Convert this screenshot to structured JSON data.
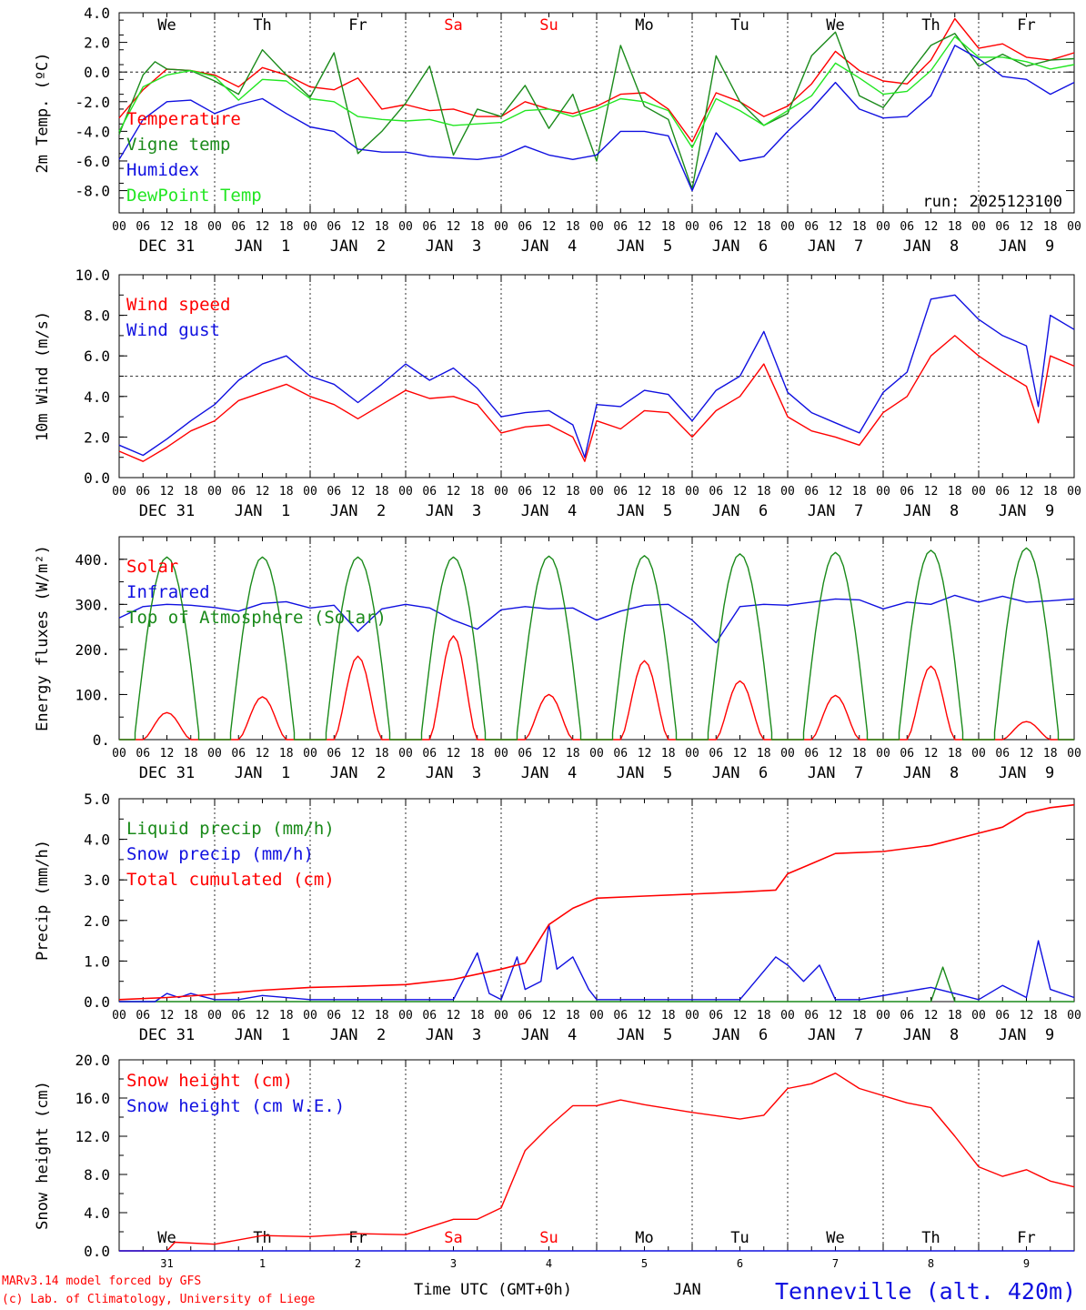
{
  "meta": {
    "credit_line1": "MARv3.14 model forced by GFS",
    "credit_line2": "(c) Lab. of Climatology, University of Liege",
    "time_label": "Time UTC (GMT+0h)",
    "month_label": "JAN",
    "location": "Tenneville (alt. 420m)",
    "run_label": "run: 2025123100",
    "colors": {
      "red": "#ff0000",
      "green": "#1a8a1a",
      "blue": "#1010e0",
      "lightgreen": "#22e622",
      "weekend": "#ff0000"
    }
  },
  "axis": {
    "hour_labels": [
      "00",
      "06",
      "12",
      "18"
    ],
    "final_hour": "00",
    "date_labels": [
      "DEC 31",
      "JAN  1",
      "JAN  2",
      "JAN  3",
      "JAN  4",
      "JAN  5",
      "JAN  6",
      "JAN  7",
      "JAN  8",
      "JAN  9"
    ],
    "weekdays": [
      "We",
      "Th",
      "Fr",
      "Sa",
      "Su",
      "Mo",
      "Tu",
      "We",
      "Th",
      "Fr"
    ],
    "weekend_index": [
      3,
      4
    ],
    "day_numbers": [
      "31",
      "1",
      "2",
      "3",
      "4",
      "5",
      "6",
      "7",
      "8",
      "9"
    ]
  },
  "chart_data": [
    {
      "id": "temp",
      "type": "line",
      "ylabel": "2m Temp. (ºC)",
      "ylim": [
        -9.5,
        4.0
      ],
      "yticks": [
        4.0,
        2.0,
        0.0,
        -2.0,
        -4.0,
        -6.0,
        -8.0
      ],
      "tick_labels": [
        "4.0",
        "2.0",
        "0.0",
        "-2.0",
        "-4.0",
        "-6.0",
        "-8.0"
      ],
      "ref_line": 0,
      "x_unit": "hours since 2025-12-31 00 UTC",
      "series": [
        {
          "name": "Temperature",
          "color": "#ff0000",
          "x": [
            0,
            6,
            12,
            18,
            24,
            30,
            36,
            42,
            48,
            54,
            60,
            66,
            72,
            78,
            84,
            90,
            96,
            102,
            108,
            114,
            120,
            126,
            132,
            138,
            144,
            150,
            156,
            162,
            168,
            174,
            180,
            186,
            192,
            198,
            204,
            210,
            216,
            222,
            228,
            234,
            240
          ],
          "y": [
            -3.1,
            -1.2,
            0.2,
            0.1,
            -0.2,
            -1.0,
            0.3,
            -0.2,
            -1.0,
            -1.2,
            -0.4,
            -2.5,
            -2.2,
            -2.6,
            -2.5,
            -3.0,
            -3.0,
            -2.0,
            -2.5,
            -2.8,
            -2.3,
            -1.5,
            -1.4,
            -2.5,
            -4.7,
            -1.4,
            -2.0,
            -3.0,
            -2.3,
            -0.8,
            1.4,
            0.1,
            -0.6,
            -0.8,
            0.8,
            3.6,
            1.6,
            1.9,
            1.0,
            0.8,
            1.3
          ]
        },
        {
          "name": "Vigne temp",
          "color": "#1a8a1a",
          "x": [
            0,
            6,
            9,
            12,
            18,
            24,
            30,
            36,
            42,
            48,
            54,
            60,
            66,
            72,
            78,
            84,
            90,
            96,
            102,
            108,
            114,
            120,
            126,
            132,
            138,
            144,
            150,
            156,
            162,
            168,
            174,
            180,
            186,
            192,
            198,
            204,
            210,
            216,
            222,
            228,
            234,
            240
          ],
          "y": [
            -4.2,
            -0.2,
            0.7,
            0.2,
            0.1,
            -0.6,
            -1.5,
            1.5,
            -0.2,
            -1.7,
            1.3,
            -5.5,
            -4.0,
            -2.1,
            0.4,
            -5.6,
            -2.5,
            -3.0,
            -0.9,
            -3.8,
            -1.5,
            -6.0,
            1.8,
            -2.3,
            -3.2,
            -7.9,
            1.1,
            -2.0,
            -3.6,
            -2.8,
            1.1,
            2.7,
            -1.6,
            -2.4,
            -0.3,
            1.8,
            2.6,
            0.4,
            1.2,
            0.4,
            0.8,
            0.9
          ]
        },
        {
          "name": "Humidex",
          "color": "#1010e0",
          "x": [
            0,
            6,
            12,
            18,
            24,
            30,
            36,
            42,
            48,
            54,
            60,
            66,
            72,
            78,
            84,
            90,
            96,
            102,
            108,
            114,
            120,
            126,
            132,
            138,
            144,
            150,
            156,
            162,
            168,
            174,
            180,
            186,
            192,
            198,
            204,
            210,
            216,
            222,
            228,
            234,
            240
          ],
          "y": [
            -5.9,
            -3.2,
            -2.0,
            -1.9,
            -2.8,
            -2.2,
            -1.8,
            -2.8,
            -3.7,
            -4.0,
            -5.2,
            -5.4,
            -5.4,
            -5.7,
            -5.8,
            -5.9,
            -5.7,
            -5.0,
            -5.6,
            -5.9,
            -5.6,
            -4.0,
            -4.0,
            -4.3,
            -8.0,
            -4.1,
            -6.0,
            -5.7,
            -4.0,
            -2.5,
            -0.7,
            -2.5,
            -3.1,
            -3.0,
            -1.6,
            1.8,
            0.9,
            -0.3,
            -0.5,
            -1.5,
            -0.7
          ]
        },
        {
          "name": "DewPoint Temp",
          "color": "#22e622",
          "x": [
            0,
            6,
            12,
            18,
            24,
            30,
            36,
            42,
            48,
            54,
            60,
            66,
            72,
            78,
            84,
            90,
            96,
            102,
            108,
            114,
            120,
            126,
            132,
            138,
            144,
            150,
            156,
            162,
            168,
            174,
            180,
            186,
            192,
            198,
            204,
            210,
            216,
            222,
            228,
            234,
            240
          ],
          "y": [
            -4.0,
            -1.0,
            -0.2,
            0.1,
            -0.3,
            -1.9,
            -0.5,
            -0.6,
            -1.8,
            -2.0,
            -3.0,
            -3.2,
            -3.3,
            -3.2,
            -3.6,
            -3.5,
            -3.4,
            -2.6,
            -2.5,
            -3.0,
            -2.5,
            -1.8,
            -2.0,
            -2.6,
            -5.1,
            -1.8,
            -2.6,
            -3.6,
            -2.6,
            -1.6,
            0.6,
            -0.4,
            -1.5,
            -1.3,
            0.1,
            2.4,
            1.0,
            1.0,
            0.7,
            0.2,
            0.5
          ]
        }
      ]
    },
    {
      "id": "wind",
      "type": "line",
      "ylabel": "10m Wind (m/s)",
      "ylim": [
        0,
        10
      ],
      "yticks": [
        10.0,
        8.0,
        6.0,
        4.0,
        2.0,
        0.0
      ],
      "tick_labels": [
        "10.0",
        "8.0",
        "6.0",
        "4.0",
        "2.0",
        "0.0"
      ],
      "ref_line": 5,
      "series": [
        {
          "name": "Wind speed",
          "color": "#ff0000",
          "x": [
            0,
            6,
            12,
            18,
            24,
            30,
            36,
            42,
            48,
            54,
            60,
            66,
            72,
            78,
            84,
            90,
            96,
            102,
            108,
            114,
            117,
            120,
            126,
            132,
            138,
            144,
            150,
            156,
            162,
            168,
            174,
            180,
            186,
            192,
            198,
            204,
            210,
            216,
            222,
            228,
            231,
            234,
            240
          ],
          "y": [
            1.3,
            0.8,
            1.5,
            2.3,
            2.8,
            3.8,
            4.2,
            4.6,
            4.0,
            3.6,
            2.9,
            3.6,
            4.3,
            3.9,
            4.0,
            3.6,
            2.2,
            2.5,
            2.6,
            2.0,
            0.8,
            2.8,
            2.4,
            3.3,
            3.2,
            2.0,
            3.3,
            4.0,
            5.6,
            3.0,
            2.3,
            2.0,
            1.6,
            3.2,
            4.0,
            6.0,
            7.0,
            6.0,
            5.2,
            4.5,
            2.7,
            6.0,
            5.5
          ]
        },
        {
          "name": "Wind gust",
          "color": "#1010e0",
          "x": [
            0,
            6,
            12,
            18,
            24,
            30,
            36,
            42,
            48,
            54,
            60,
            66,
            72,
            78,
            84,
            90,
            96,
            102,
            108,
            114,
            117,
            120,
            126,
            132,
            138,
            144,
            150,
            156,
            162,
            168,
            174,
            180,
            186,
            192,
            198,
            204,
            210,
            216,
            222,
            228,
            231,
            234,
            240
          ],
          "y": [
            1.6,
            1.1,
            1.9,
            2.8,
            3.6,
            4.8,
            5.6,
            6.0,
            5.0,
            4.6,
            3.7,
            4.6,
            5.6,
            4.8,
            5.4,
            4.4,
            3.0,
            3.2,
            3.3,
            2.6,
            1.0,
            3.6,
            3.5,
            4.3,
            4.1,
            2.8,
            4.3,
            5.0,
            7.2,
            4.2,
            3.2,
            2.7,
            2.2,
            4.2,
            5.2,
            8.8,
            9.0,
            7.8,
            7.0,
            6.5,
            3.5,
            8.0,
            7.3
          ]
        }
      ]
    },
    {
      "id": "flux",
      "type": "line",
      "ylabel": "Energy fluxes (W/m²)",
      "ylim": [
        0,
        450
      ],
      "yticks": [
        400,
        300,
        200,
        100,
        0
      ],
      "tick_labels": [
        "400.",
        "300.",
        "200.",
        "100.",
        "0."
      ],
      "series": [
        {
          "name": "Solar",
          "color": "#ff0000",
          "peaks": [
            60,
            95,
            185,
            230,
            100,
            175,
            130,
            98,
            163,
            40
          ]
        },
        {
          "name": "Infrared",
          "color": "#1010e0",
          "x": [
            0,
            6,
            12,
            18,
            24,
            30,
            36,
            42,
            48,
            54,
            60,
            66,
            72,
            78,
            84,
            90,
            96,
            102,
            108,
            114,
            120,
            126,
            132,
            138,
            144,
            150,
            156,
            162,
            168,
            174,
            180,
            186,
            192,
            198,
            204,
            210,
            216,
            222,
            228,
            234,
            240
          ],
          "y": [
            270,
            295,
            300,
            298,
            293,
            285,
            302,
            306,
            292,
            298,
            240,
            290,
            300,
            292,
            265,
            245,
            288,
            295,
            290,
            292,
            265,
            285,
            298,
            300,
            265,
            215,
            295,
            300,
            298,
            305,
            312,
            310,
            290,
            305,
            300,
            320,
            305,
            318,
            305,
            308,
            312
          ]
        },
        {
          "name": "Top of Atmosphere (Solar)",
          "color": "#1a8a1a",
          "peaks": [
            405,
            405,
            405,
            405,
            407,
            408,
            412,
            415,
            420,
            425
          ]
        }
      ]
    },
    {
      "id": "precip",
      "type": "line",
      "ylabel": "Precip (mm/h)",
      "ylim": [
        0,
        5
      ],
      "yticks": [
        5.0,
        4.0,
        3.0,
        2.0,
        1.0,
        0.0
      ],
      "tick_labels": [
        "5.0",
        "4.0",
        "3.0",
        "2.0",
        "1.0",
        "0.0"
      ],
      "series": [
        {
          "name": "Liquid precip (mm/h)",
          "color": "#1a8a1a",
          "x": [
            0,
            204,
            207,
            210,
            240
          ],
          "y": [
            0,
            0,
            0.85,
            0,
            0
          ]
        },
        {
          "name": "Snow precip (mm/h)",
          "color": "#1010e0",
          "x": [
            0,
            9,
            12,
            15,
            18,
            24,
            30,
            36,
            48,
            60,
            72,
            84,
            90,
            93,
            96,
            100,
            102,
            106,
            108,
            110,
            114,
            118,
            120,
            144,
            156,
            165,
            168,
            172,
            176,
            180,
            186,
            204,
            210,
            216,
            222,
            228,
            231,
            234,
            240
          ],
          "y": [
            0,
            0,
            0.2,
            0.1,
            0.2,
            0.05,
            0.05,
            0.15,
            0.05,
            0.05,
            0.05,
            0.05,
            1.2,
            0.2,
            0.05,
            1.1,
            0.3,
            0.5,
            1.9,
            0.8,
            1.1,
            0.3,
            0.05,
            0.05,
            0.05,
            1.1,
            0.9,
            0.5,
            0.9,
            0.05,
            0.05,
            0.35,
            0.2,
            0.05,
            0.4,
            0.1,
            1.5,
            0.3,
            0.1
          ]
        },
        {
          "name": "Total cumulated (cm)",
          "color": "#ff0000",
          "x": [
            0,
            12,
            24,
            36,
            48,
            60,
            72,
            84,
            96,
            102,
            108,
            114,
            120,
            132,
            144,
            156,
            165,
            168,
            174,
            180,
            192,
            204,
            216,
            222,
            228,
            234,
            240
          ],
          "y": [
            0.05,
            0.1,
            0.18,
            0.28,
            0.35,
            0.38,
            0.42,
            0.55,
            0.8,
            0.95,
            1.9,
            2.3,
            2.55,
            2.6,
            2.65,
            2.7,
            2.75,
            3.15,
            3.4,
            3.65,
            3.7,
            3.85,
            4.15,
            4.3,
            4.65,
            4.78,
            4.85
          ]
        }
      ]
    },
    {
      "id": "snow",
      "type": "line",
      "ylabel": "Snow height (cm)",
      "ylim": [
        0,
        20
      ],
      "yticks": [
        20.0,
        16.0,
        12.0,
        8.0,
        4.0,
        0.0
      ],
      "tick_labels": [
        "20.0",
        "16.0",
        "12.0",
        "8.0",
        "4.0",
        "0.0"
      ],
      "series": [
        {
          "name": "Snow height (cm)",
          "color": "#ff0000",
          "x": [
            0,
            12,
            14,
            24,
            36,
            48,
            60,
            72,
            84,
            90,
            96,
            102,
            108,
            114,
            120,
            126,
            132,
            144,
            156,
            162,
            168,
            174,
            180,
            186,
            198,
            204,
            210,
            216,
            222,
            228,
            234,
            240
          ],
          "y": [
            0,
            0,
            0.9,
            0.7,
            1.6,
            1.5,
            1.8,
            1.7,
            3.3,
            3.3,
            4.5,
            10.5,
            13.0,
            15.2,
            15.2,
            15.8,
            15.3,
            14.5,
            13.8,
            14.2,
            17.0,
            17.5,
            18.6,
            17.0,
            15.5,
            15.0,
            12.0,
            8.8,
            7.8,
            8.5,
            7.3,
            6.7
          ]
        },
        {
          "name": "Snow height (cm W.E.)",
          "color": "#1010e0",
          "x": [
            0,
            240
          ],
          "y": [
            0,
            0
          ]
        }
      ]
    }
  ]
}
